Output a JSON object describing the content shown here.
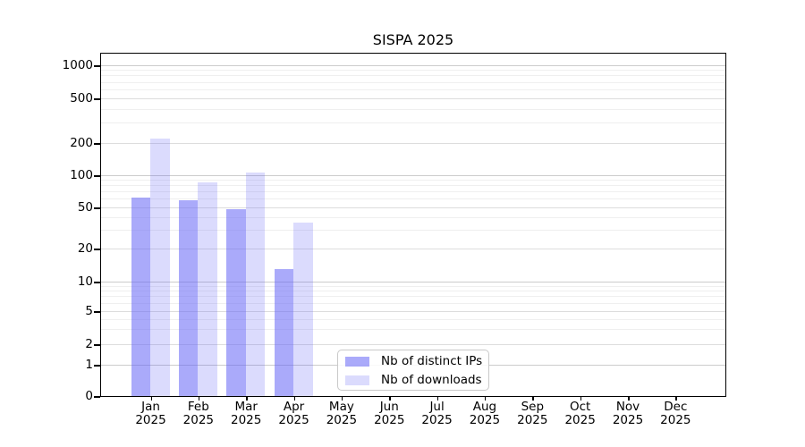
{
  "chart_data": {
    "type": "bar",
    "title": "SISPA 2025",
    "year_label": "2025",
    "months": [
      "Jan",
      "Feb",
      "Mar",
      "Apr",
      "May",
      "Jun",
      "Jul",
      "Aug",
      "Sep",
      "Oct",
      "Nov",
      "Dec"
    ],
    "series": [
      {
        "name": "Nb of distinct IPs",
        "color": "rgba(100,100,245,0.55)",
        "solid_color": "#a8a8f8",
        "values": [
          62,
          58,
          48,
          13,
          null,
          null,
          null,
          null,
          null,
          null,
          null,
          null
        ]
      },
      {
        "name": "Nb of downloads",
        "color": "rgba(100,100,245,0.23)",
        "solid_color": "#dbdbfa",
        "values": [
          218,
          86,
          105,
          36,
          null,
          null,
          null,
          null,
          null,
          null,
          null,
          null
        ]
      }
    ],
    "y_axis": {
      "scale": "symlog",
      "range": [
        0,
        1000
      ],
      "ticks": [
        0,
        1,
        2,
        5,
        10,
        20,
        50,
        100,
        200,
        500,
        1000
      ],
      "minor_ticks": [
        3,
        4,
        6,
        7,
        8,
        9,
        30,
        40,
        60,
        70,
        80,
        90,
        300,
        400,
        600,
        700,
        800,
        900
      ]
    },
    "x_axis": {
      "label_format": "month-over-year"
    },
    "legend": {
      "position": "bottom-center"
    },
    "grid": true,
    "colors": {
      "grid_power10": "#cccccc",
      "grid_major": "#dddddd",
      "grid_minor": "#efefef",
      "axis": "#000000",
      "background": "#ffffff"
    }
  }
}
